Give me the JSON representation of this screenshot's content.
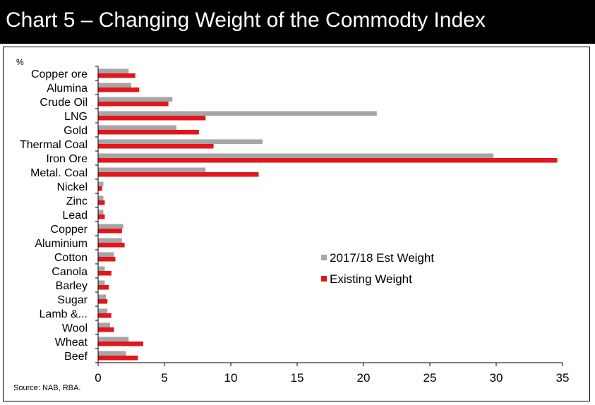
{
  "title": "Chart 5 – Changing Weight of the Commodty Index",
  "source": "Source: NAB, RBA.",
  "colors": {
    "est": "#a6a6a6",
    "existing": "#e2161b",
    "title_bg": "#000000"
  },
  "chart_data": {
    "type": "bar",
    "orientation": "horizontal",
    "ylabel": "%",
    "categories": [
      "Copper ore",
      "Alumina",
      "Crude Oil",
      "LNG",
      "Gold",
      "Thermal Coal",
      "Iron Ore",
      "Metal. Coal",
      "Nickel",
      "Zinc",
      "Lead",
      "Copper",
      "Aluminium",
      "Cotton",
      "Canola",
      "Barley",
      "Sugar",
      "Lamb &...",
      "Wool",
      "Wheat",
      "Beef"
    ],
    "series": [
      {
        "name": "2017/18 Est Weight",
        "color": "#a6a6a6",
        "values": [
          2.3,
          2.5,
          5.6,
          21.0,
          5.9,
          12.4,
          29.8,
          8.1,
          0.4,
          0.4,
          0.4,
          1.9,
          1.8,
          1.2,
          0.5,
          0.5,
          0.6,
          0.7,
          0.9,
          2.3,
          2.1
        ]
      },
      {
        "name": "Existing Weight",
        "color": "#e2161b",
        "values": [
          2.8,
          3.1,
          5.3,
          8.1,
          7.6,
          8.7,
          34.6,
          12.1,
          0.3,
          0.5,
          0.5,
          1.8,
          2.0,
          1.3,
          1.0,
          0.8,
          0.7,
          1.0,
          1.2,
          3.4,
          3.0
        ]
      }
    ],
    "xlim": [
      0,
      35
    ],
    "xticks": [
      0,
      5,
      10,
      15,
      20,
      25,
      30,
      35
    ],
    "grid": false,
    "legend_position": "right-middle"
  }
}
